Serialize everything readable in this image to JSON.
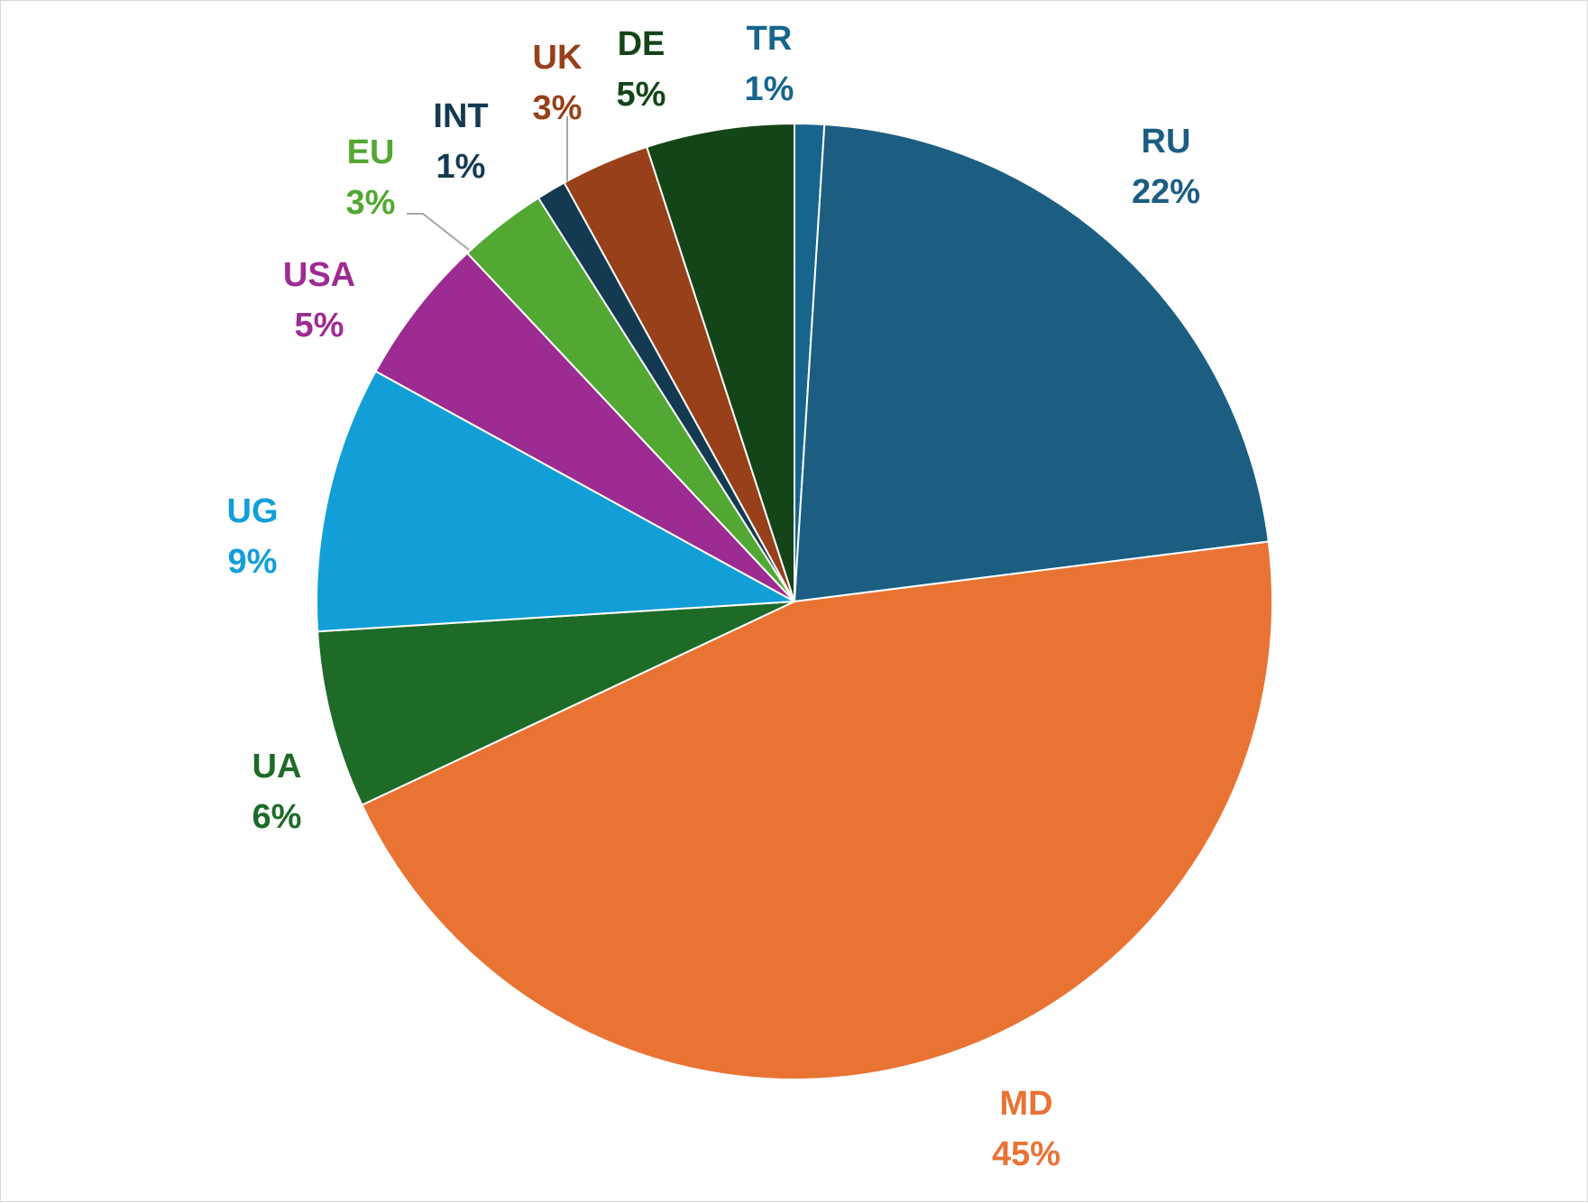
{
  "chart_data": {
    "type": "pie",
    "slices": [
      {
        "label": "TR",
        "value": 1,
        "percent_label": "1%",
        "color": "#17658c"
      },
      {
        "label": "RU",
        "value": 22,
        "percent_label": "22%",
        "color": "#1b5e82"
      },
      {
        "label": "MD",
        "value": 45,
        "percent_label": "45%",
        "color": "#e97333"
      },
      {
        "label": "UA",
        "value": 6,
        "percent_label": "6%",
        "color": "#1e6b28"
      },
      {
        "label": "UG",
        "value": 9,
        "percent_label": "9%",
        "color": "#129fd8"
      },
      {
        "label": "USA",
        "value": 5,
        "percent_label": "5%",
        "color": "#9c2b92"
      },
      {
        "label": "EU",
        "value": 3,
        "percent_label": "3%",
        "color": "#52a833"
      },
      {
        "label": "INT",
        "value": 1,
        "percent_label": "1%",
        "color": "#143a52"
      },
      {
        "label": "UK",
        "value": 3,
        "percent_label": "3%",
        "color": "#97401a"
      },
      {
        "label": "DE",
        "value": 5,
        "percent_label": "5%",
        "color": "#144519"
      }
    ],
    "start_angle": "12 o'clock",
    "direction": "clockwise",
    "legend": "none",
    "leader_lines": [
      "EU",
      "UK"
    ]
  }
}
